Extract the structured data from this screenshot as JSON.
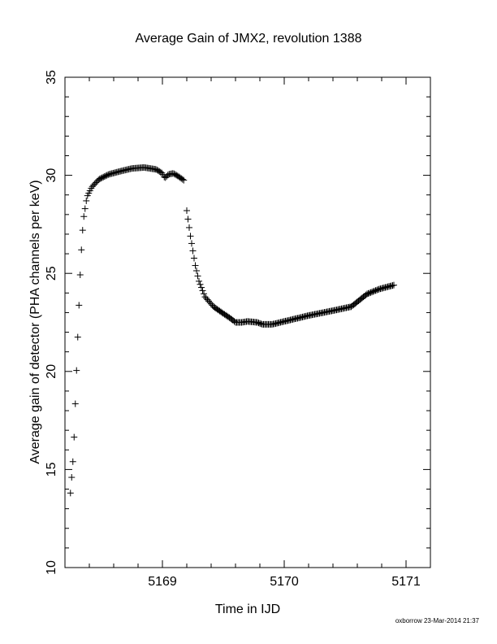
{
  "footer": "oxborrow 23-Mar-2014 21:37",
  "chart_data": {
    "type": "scatter",
    "title": "Average Gain of JMX2, revolution 1388",
    "xlabel": "Time in IJD",
    "ylabel": "Average gain of detector (PHA channels per keV)",
    "xlim": [
      5168.2,
      5171.2
    ],
    "ylim": [
      10,
      35
    ],
    "xticks": [
      5169,
      5170,
      5171
    ],
    "yticks": [
      10,
      15,
      20,
      25,
      30,
      35
    ],
    "marker": "+",
    "grid": false,
    "series": [
      {
        "segments": [
          {
            "x_start": 5168.245,
            "x_end": 5169.175,
            "step": 0.01,
            "curve": [
              [
                5168.245,
                13.8
              ],
              [
                5168.27,
                15.8
              ],
              [
                5168.29,
                19.2
              ],
              [
                5168.31,
                22.6
              ],
              [
                5168.33,
                25.7
              ],
              [
                5168.35,
                27.7
              ],
              [
                5168.38,
                28.9
              ],
              [
                5168.42,
                29.4
              ],
              [
                5168.48,
                29.8
              ],
              [
                5168.56,
                30.05
              ],
              [
                5168.65,
                30.2
              ],
              [
                5168.75,
                30.35
              ],
              [
                5168.85,
                30.4
              ],
              [
                5168.95,
                30.3
              ],
              [
                5169.0,
                30.1
              ],
              [
                5169.02,
                29.85
              ],
              [
                5169.05,
                30.05
              ],
              [
                5169.09,
                30.1
              ],
              [
                5169.13,
                29.95
              ],
              [
                5169.175,
                29.75
              ]
            ]
          },
          {
            "x_start": 5169.2,
            "x_end": 5170.9,
            "step": 0.01,
            "curve": [
              [
                5169.2,
                28.2
              ],
              [
                5169.23,
                26.9
              ],
              [
                5169.27,
                25.4
              ],
              [
                5169.3,
                24.6
              ],
              [
                5169.35,
                23.8
              ],
              [
                5169.42,
                23.3
              ],
              [
                5169.5,
                22.95
              ],
              [
                5169.56,
                22.7
              ],
              [
                5169.6,
                22.5
              ],
              [
                5169.65,
                22.5
              ],
              [
                5169.7,
                22.55
              ],
              [
                5169.78,
                22.5
              ],
              [
                5169.82,
                22.4
              ],
              [
                5169.9,
                22.4
              ],
              [
                5170.0,
                22.55
              ],
              [
                5170.2,
                22.85
              ],
              [
                5170.4,
                23.1
              ],
              [
                5170.55,
                23.3
              ],
              [
                5170.62,
                23.65
              ],
              [
                5170.68,
                23.95
              ],
              [
                5170.78,
                24.2
              ],
              [
                5170.9,
                24.4
              ]
            ]
          }
        ]
      }
    ]
  }
}
